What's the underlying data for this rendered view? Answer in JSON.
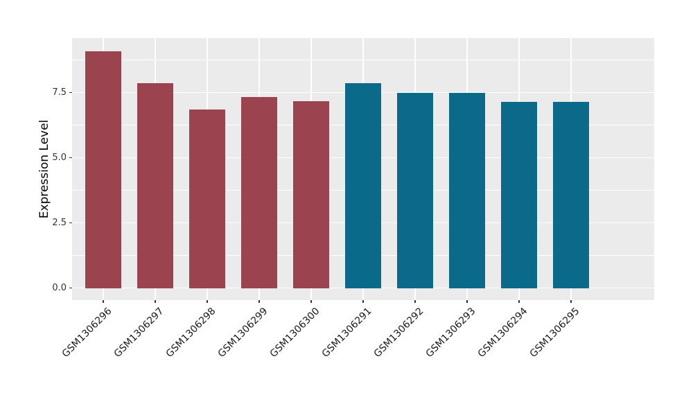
{
  "chart_data": {
    "type": "bar",
    "title": "",
    "xlabel": "",
    "ylabel": "Expression Level",
    "categories": [
      "GSM1306296",
      "GSM1306297",
      "GSM1306298",
      "GSM1306299",
      "GSM1306300",
      "GSM1306291",
      "GSM1306292",
      "GSM1306293",
      "GSM1306294",
      "GSM1306295"
    ],
    "values": [
      9.1,
      7.86,
      6.85,
      7.33,
      7.17,
      7.86,
      7.48,
      7.48,
      7.15,
      7.14
    ],
    "bar_colors": [
      "#9C4350",
      "#9C4350",
      "#9C4350",
      "#9C4350",
      "#9C4350",
      "#0B6A89",
      "#0B6A89",
      "#0B6A89",
      "#0B6A89",
      "#0B6A89"
    ],
    "ylim": [
      0,
      9.6
    ],
    "yticks": [
      {
        "value": 0.0,
        "label": "0.0"
      },
      {
        "value": 2.5,
        "label": "2.5"
      },
      {
        "value": 5.0,
        "label": "5.0"
      },
      {
        "value": 7.5,
        "label": "7.5"
      }
    ],
    "yticks_minor": [
      1.25,
      3.75,
      6.25,
      8.75
    ],
    "grid": "on",
    "legend": "none",
    "panel_bg": "#EBEBEB",
    "grid_color": "#FFFFFF",
    "axis_text_color": "#333333"
  }
}
